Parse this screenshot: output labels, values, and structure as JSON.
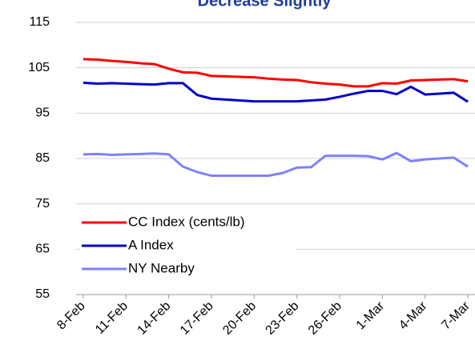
{
  "chart_data": {
    "type": "line",
    "title": "Decrease Slightly",
    "categories": [
      "8-Feb",
      null,
      null,
      "11-Feb",
      null,
      null,
      "14-Feb",
      null,
      null,
      "17-Feb",
      null,
      null,
      "20-Feb",
      null,
      null,
      "23-Feb",
      null,
      null,
      "26-Feb",
      null,
      null,
      "1-Mar",
      null,
      null,
      "4-Mar",
      null,
      null,
      "7-Mar"
    ],
    "series": [
      {
        "name": "CC Index (cents/lb)",
        "color": "#ff0000",
        "values": [
          106.9,
          106.8,
          106.5,
          106.3,
          106.0,
          105.8,
          104.8,
          104.0,
          103.9,
          103.2,
          103.1,
          103.0,
          102.9,
          102.6,
          102.4,
          102.3,
          101.8,
          101.5,
          101.3,
          100.9,
          100.9,
          101.6,
          101.5,
          102.2,
          102.3,
          102.4,
          102.5,
          102.0
        ]
      },
      {
        "name": "A Index",
        "color": "#0000cc",
        "values": [
          101.7,
          101.5,
          101.6,
          101.5,
          101.4,
          101.3,
          101.6,
          101.6,
          99.0,
          98.2,
          98.0,
          97.8,
          97.6,
          97.6,
          97.6,
          97.6,
          97.8,
          98.0,
          98.6,
          99.3,
          99.9,
          99.9,
          99.2,
          100.8,
          99.1,
          99.3,
          99.5,
          97.5
        ]
      },
      {
        "name": "NY Nearby",
        "color": "#8080ff",
        "values": [
          85.9,
          86.0,
          85.8,
          85.9,
          86.0,
          86.1,
          85.9,
          83.2,
          82.0,
          81.2,
          81.2,
          81.2,
          81.2,
          81.2,
          81.8,
          83.0,
          83.1,
          85.6,
          85.6,
          85.6,
          85.5,
          84.8,
          86.2,
          84.4,
          84.8,
          85.0,
          85.2,
          83.2
        ]
      }
    ],
    "ylim": [
      55,
      115
    ],
    "yticks": [
      55,
      65,
      75,
      85,
      95,
      105,
      115
    ],
    "grid": true,
    "legend": "lower left"
  }
}
